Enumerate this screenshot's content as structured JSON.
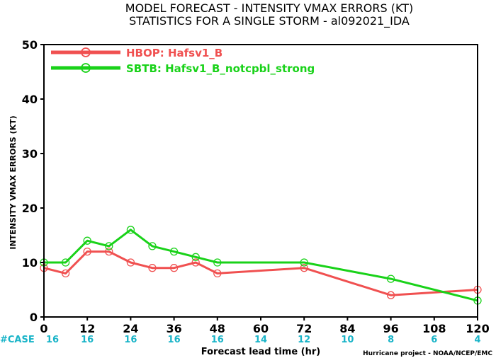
{
  "chart_data": {
    "type": "line",
    "title_line1": "MODEL FORECAST - INTENSITY VMAX ERRORS (KT)",
    "title_line2": "STATISTICS FOR A SINGLE STORM - al092021_IDA",
    "xlabel": "Forecast lead time (hr)",
    "ylabel": "INTENSITY VMAX ERRORS (KT)",
    "xlim": [
      0,
      120
    ],
    "ylim": [
      0,
      50
    ],
    "x_ticks": [
      0,
      12,
      24,
      36,
      48,
      60,
      72,
      84,
      96,
      108,
      120
    ],
    "y_ticks": [
      0,
      10,
      20,
      30,
      40,
      50
    ],
    "legend_position": "top-left",
    "series": [
      {
        "name": "HBOP: Hafsv1_B",
        "color": "#f05050",
        "x": [
          0,
          6,
          12,
          18,
          24,
          30,
          36,
          42,
          48,
          72,
          96,
          120
        ],
        "values": [
          9,
          8,
          12,
          12,
          10,
          9,
          9,
          10,
          8,
          9,
          4,
          5
        ]
      },
      {
        "name": "SBTB: Hafsv1_B_notcpbl_strong",
        "color": "#19d219",
        "x": [
          0,
          6,
          12,
          18,
          24,
          30,
          36,
          42,
          48,
          72,
          96,
          120
        ],
        "values": [
          10,
          10,
          14,
          13,
          16,
          13,
          12,
          11,
          10,
          10,
          7,
          3
        ]
      }
    ],
    "case_label": "#CASE",
    "cases": [
      16,
      16,
      16,
      16,
      16,
      14,
      12,
      10,
      8,
      6,
      4
    ],
    "credit": "Hurricane project - NOAA/NCEP/EMC"
  }
}
